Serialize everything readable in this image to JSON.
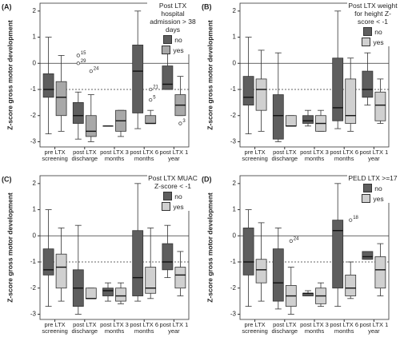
{
  "chart_data": [
    {
      "type": "box",
      "panel_label": "(A)",
      "legend_title": "Post LTX hospital admission > 38 days",
      "y_label": "Z-score gross motor development",
      "categories": [
        "pre LTX screening",
        "post LTX discharge",
        "post LTX 3 months",
        "post LTX 6 months",
        "post LTX 1 year"
      ],
      "ylim": [
        -3.2,
        2.3
      ],
      "yticks": [
        2,
        1,
        0,
        -1,
        -2,
        -3
      ],
      "hlines": [
        {
          "value": 0,
          "style": "solid"
        },
        {
          "value": -1,
          "style": "dotted"
        }
      ],
      "series": [
        {
          "name": "no",
          "color": "#5e5e5e",
          "boxes": [
            {
              "whislo": -2.7,
              "q1": -1.3,
              "med": -1.0,
              "q3": -0.4,
              "whishi": 1.0,
              "outliers": []
            },
            {
              "whislo": -2.9,
              "q1": -2.3,
              "med": -2.0,
              "q3": -1.5,
              "whishi": -1.1,
              "outliers": [
                {
                  "value": 0.3,
                  "label": "15"
                },
                {
                  "value": 0.0,
                  "label": "29"
                }
              ]
            },
            {
              "whislo": -2.4,
              "q1": -2.4,
              "med": -2.4,
              "q3": -2.4,
              "whishi": -2.4,
              "outliers": []
            },
            {
              "whislo": -2.5,
              "q1": -1.9,
              "med": -0.3,
              "q3": 0.7,
              "whishi": 2.0,
              "outliers": []
            },
            {
              "whislo": -1.0,
              "q1": -1.0,
              "med": -0.8,
              "q3": -0.1,
              "whishi": 0.6,
              "outliers": []
            }
          ]
        },
        {
          "name": "yes",
          "color": "#a8a8a8",
          "boxes": [
            {
              "whislo": -2.6,
              "q1": -2.0,
              "med": -1.3,
              "q3": -0.7,
              "whishi": 0.3,
              "outliers": []
            },
            {
              "whislo": -3.0,
              "q1": -2.8,
              "med": -2.6,
              "q3": -2.0,
              "whishi": -1.2,
              "outliers": [
                {
                  "value": -0.3,
                  "label": "24"
                }
              ]
            },
            {
              "whislo": -2.8,
              "q1": -2.6,
              "med": -2.2,
              "q3": -1.8,
              "whishi": -1.8,
              "outliers": []
            },
            {
              "whislo": -2.3,
              "q1": -2.3,
              "med": -2.3,
              "q3": -2.0,
              "whishi": -1.8,
              "outliers": [
                {
                  "value": -1.0,
                  "label": "21"
                },
                {
                  "value": -1.4,
                  "label": "5"
                }
              ]
            },
            {
              "whislo": -2.0,
              "q1": -2.0,
              "med": -1.6,
              "q3": -1.2,
              "whishi": -0.5,
              "outliers": [
                {
                  "value": -2.3,
                  "label": "3"
                }
              ]
            }
          ]
        }
      ]
    },
    {
      "type": "box",
      "panel_label": "(B)",
      "legend_title": "Post LTX weight for height Z-score < -1",
      "y_label": "Z-score gross motor development",
      "categories": [
        "pre LTX screening",
        "post LTX discharge",
        "post LTX 3 months",
        "post LTX 6 months",
        "post LTX 1 year"
      ],
      "ylim": [
        -3.2,
        2.3
      ],
      "yticks": [
        2,
        1,
        0,
        -1,
        -2,
        -3
      ],
      "hlines": [
        {
          "value": 0,
          "style": "solid"
        },
        {
          "value": -1,
          "style": "dotted"
        }
      ],
      "series": [
        {
          "name": "no",
          "color": "#5e5e5e",
          "boxes": [
            {
              "whislo": -2.7,
              "q1": -1.6,
              "med": -1.3,
              "q3": -0.5,
              "whishi": 1.0,
              "outliers": []
            },
            {
              "whislo": -3.0,
              "q1": -2.9,
              "med": -2.0,
              "q3": -1.2,
              "whishi": 0.4,
              "outliers": []
            },
            {
              "whislo": -2.4,
              "q1": -2.3,
              "med": -2.2,
              "q3": -2.0,
              "whishi": -1.8,
              "outliers": []
            },
            {
              "whislo": -2.5,
              "q1": -2.2,
              "med": -1.7,
              "q3": 0.2,
              "whishi": 2.0,
              "outliers": []
            },
            {
              "whislo": -1.6,
              "q1": -1.3,
              "med": -1.0,
              "q3": -0.3,
              "whishi": 0.4,
              "outliers": []
            }
          ]
        },
        {
          "name": "yes",
          "color": "#d0d0d0",
          "boxes": [
            {
              "whislo": -2.6,
              "q1": -1.8,
              "med": -1.0,
              "q3": -0.6,
              "whishi": 0.5,
              "outliers": []
            },
            {
              "whislo": -2.4,
              "q1": -2.4,
              "med": -2.4,
              "q3": -2.0,
              "whishi": -2.0,
              "outliers": []
            },
            {
              "whislo": -2.6,
              "q1": -2.6,
              "med": -2.3,
              "q3": -2.0,
              "whishi": -1.8,
              "outliers": []
            },
            {
              "whislo": -2.6,
              "q1": -2.3,
              "med": -2.0,
              "q3": -0.6,
              "whishi": 0.2,
              "outliers": []
            },
            {
              "whislo": -2.3,
              "q1": -2.2,
              "med": -1.6,
              "q3": -1.1,
              "whishi": -0.6,
              "outliers": []
            }
          ]
        }
      ]
    },
    {
      "type": "box",
      "panel_label": "(C)",
      "legend_title": "Post LTX MUAC Z-score < -1",
      "y_label": "Z-score gross motor development",
      "categories": [
        "pre LTX screening",
        "post LTX discharge",
        "post LTX 3 months",
        "post LTX 6 months",
        "post LTX 1 year"
      ],
      "ylim": [
        -3.2,
        2.3
      ],
      "yticks": [
        2,
        1,
        0,
        -1,
        -2,
        -3
      ],
      "hlines": [
        {
          "value": 0,
          "style": "solid"
        },
        {
          "value": -1,
          "style": "dotted"
        }
      ],
      "series": [
        {
          "name": "no",
          "color": "#5e5e5e",
          "boxes": [
            {
              "whislo": -2.7,
              "q1": -1.5,
              "med": -1.3,
              "q3": -0.5,
              "whishi": 1.0,
              "outliers": []
            },
            {
              "whislo": -3.0,
              "q1": -2.7,
              "med": -2.0,
              "q3": -1.3,
              "whishi": 0.4,
              "outliers": []
            },
            {
              "whislo": -2.5,
              "q1": -2.3,
              "med": -2.1,
              "q3": -2.0,
              "whishi": -1.8,
              "outliers": []
            },
            {
              "whislo": -2.5,
              "q1": -2.3,
              "med": -1.6,
              "q3": 0.2,
              "whishi": 2.0,
              "outliers": []
            },
            {
              "whislo": -1.6,
              "q1": -1.3,
              "med": -1.0,
              "q3": -0.3,
              "whishi": 0.4,
              "outliers": []
            }
          ]
        },
        {
          "name": "yes",
          "color": "#d0d0d0",
          "boxes": [
            {
              "whislo": -2.5,
              "q1": -2.0,
              "med": -1.2,
              "q3": -0.7,
              "whishi": 0.3,
              "outliers": []
            },
            {
              "whislo": -2.4,
              "q1": -2.4,
              "med": -2.4,
              "q3": -2.0,
              "whishi": -2.0,
              "outliers": []
            },
            {
              "whislo": -2.6,
              "q1": -2.5,
              "med": -2.3,
              "q3": -2.0,
              "whishi": -1.8,
              "outliers": []
            },
            {
              "whislo": -2.4,
              "q1": -2.2,
              "med": -2.0,
              "q3": -1.2,
              "whishi": 0.3,
              "outliers": []
            },
            {
              "whislo": -2.3,
              "q1": -2.0,
              "med": -1.5,
              "q3": -1.2,
              "whishi": -0.6,
              "outliers": []
            }
          ]
        }
      ]
    },
    {
      "type": "box",
      "panel_label": "(D)",
      "legend_title": "PELD LTX >=17",
      "y_label": "Z-score gross motor development",
      "categories": [
        "pre LTX screening",
        "post LTX discharge",
        "post LTX 3 months",
        "post LTX 6 months",
        "post LTX 1 year"
      ],
      "ylim": [
        -3.2,
        2.3
      ],
      "yticks": [
        2,
        1,
        0,
        -1,
        -2,
        -3
      ],
      "hlines": [
        {
          "value": 0,
          "style": "solid"
        },
        {
          "value": -1,
          "style": "dotted"
        }
      ],
      "series": [
        {
          "name": "no",
          "color": "#5e5e5e",
          "boxes": [
            {
              "whislo": -2.7,
              "q1": -1.5,
              "med": -1.0,
              "q3": 0.3,
              "whishi": 1.0,
              "outliers": []
            },
            {
              "whislo": -2.8,
              "q1": -2.5,
              "med": -1.8,
              "q3": -0.5,
              "whishi": 0.3,
              "outliers": []
            },
            {
              "whislo": -2.3,
              "q1": -2.3,
              "med": -2.2,
              "q3": -2.2,
              "whishi": -2.1,
              "outliers": []
            },
            {
              "whislo": -2.7,
              "q1": -2.0,
              "med": 0.2,
              "q3": 0.6,
              "whishi": 2.0,
              "outliers": []
            },
            {
              "whislo": -0.9,
              "q1": -0.9,
              "med": -0.8,
              "q3": -0.6,
              "whishi": -0.6,
              "outliers": []
            }
          ]
        },
        {
          "name": "yes",
          "color": "#d0d0d0",
          "boxes": [
            {
              "whislo": -2.5,
              "q1": -1.8,
              "med": -1.3,
              "q3": -0.9,
              "whishi": 0.5,
              "outliers": []
            },
            {
              "whislo": -3.0,
              "q1": -2.7,
              "med": -2.3,
              "q3": -1.9,
              "whishi": -1.2,
              "outliers": [
                {
                  "value": -0.2,
                  "label": "24"
                }
              ]
            },
            {
              "whislo": -2.7,
              "q1": -2.6,
              "med": -2.3,
              "q3": -2.0,
              "whishi": -1.8,
              "outliers": []
            },
            {
              "whislo": -2.4,
              "q1": -2.3,
              "med": -2.0,
              "q3": -1.5,
              "whishi": -1.0,
              "outliers": [
                {
                  "value": 0.6,
                  "label": "18"
                }
              ]
            },
            {
              "whislo": -2.3,
              "q1": -2.0,
              "med": -1.3,
              "q3": -0.8,
              "whishi": -0.3,
              "outliers": []
            }
          ]
        }
      ]
    }
  ]
}
